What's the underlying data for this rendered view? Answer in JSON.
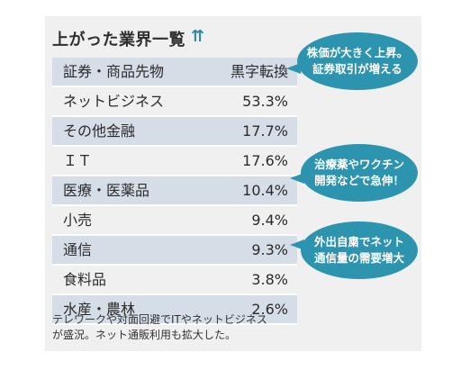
{
  "title": "上がった業界一覧",
  "title_icon": "up-arrows-icon",
  "chart_data": {
    "type": "table",
    "columns": [
      "証券・商品先物",
      "黒字転換"
    ],
    "rows": [
      {
        "category": "ネットビジネス",
        "value": "53.3%"
      },
      {
        "category": "その他金融",
        "value": "17.7%"
      },
      {
        "category": "ＩＴ",
        "value": "17.6%"
      },
      {
        "category": "医療・医薬品",
        "value": "10.4%"
      },
      {
        "category": "小売",
        "value": "9.4%"
      },
      {
        "category": "通信",
        "value": "9.3%"
      },
      {
        "category": "食料品",
        "value": "3.8%"
      },
      {
        "category": "水産・農林",
        "value": "2.6%"
      }
    ]
  },
  "bubbles": [
    {
      "line1": "株価が大きく上昇。",
      "line2": "証券取引が増える"
    },
    {
      "line1": "治療薬やワクチン",
      "line2": "開発などで急伸！"
    },
    {
      "line1": "外出自粛でネット",
      "line2": "通信量の需要増大"
    }
  ],
  "note": {
    "line1": "テレワークや対面回避でITやネットビジネス",
    "line2": "が盛況。ネット通販利用も拡大した。"
  },
  "colors": {
    "accent": "#2d94b0",
    "row_band": "#d5dde7",
    "panel": "#f0f0f1"
  }
}
